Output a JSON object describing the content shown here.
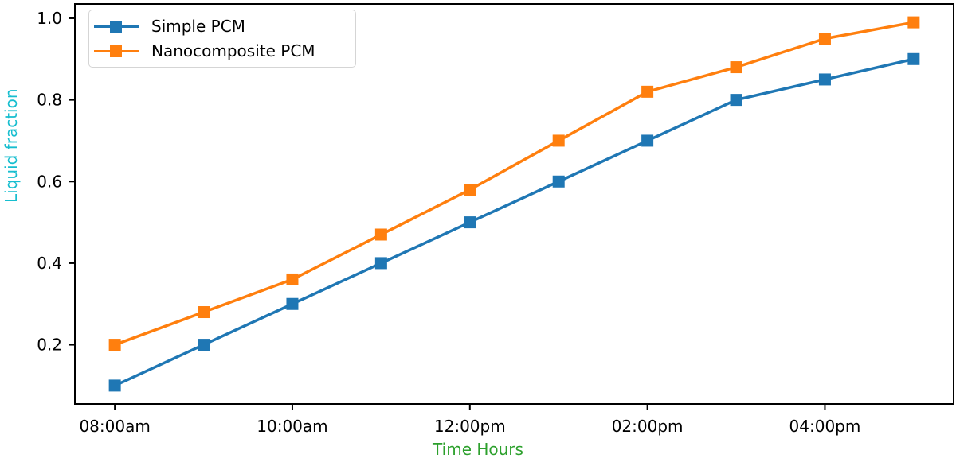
{
  "chart_data": {
    "type": "line",
    "x_hours": [
      8,
      9,
      10,
      11,
      12,
      13,
      14,
      15,
      16,
      17
    ],
    "series": [
      {
        "name": "Simple PCM",
        "color": "#1f77b4",
        "marker": "square",
        "values": [
          0.1,
          0.2,
          0.3,
          0.4,
          0.5,
          0.6,
          0.7,
          0.8,
          0.85,
          0.9
        ]
      },
      {
        "name": "Nanocomposite PCM",
        "color": "#ff7f0e",
        "marker": "square",
        "values": [
          0.2,
          0.28,
          0.36,
          0.47,
          0.58,
          0.7,
          0.82,
          0.88,
          0.95,
          0.99
        ]
      }
    ],
    "title": "",
    "xlabel": "Time Hours",
    "xlabel_color": "#2ca02c",
    "ylabel": "Liquid fraction",
    "ylabel_color": "#17becf",
    "xticks": [
      {
        "hour": 8,
        "label": "08:00am"
      },
      {
        "hour": 10,
        "label": "10:00am"
      },
      {
        "hour": 12,
        "label": "12:00pm"
      },
      {
        "hour": 14,
        "label": "02:00pm"
      },
      {
        "hour": 16,
        "label": "04:00pm"
      }
    ],
    "yticks": [
      {
        "value": 0.2,
        "label": "0.2"
      },
      {
        "value": 0.4,
        "label": "0.4"
      },
      {
        "value": 0.6,
        "label": "0.6"
      },
      {
        "value": 0.8,
        "label": "0.8"
      },
      {
        "value": 1.0,
        "label": "1.0"
      }
    ],
    "xlim": [
      7.55,
      17.45
    ],
    "ylim": [
      0.055,
      1.035
    ],
    "grid": false,
    "legend_position": "upper left",
    "spine_color": "#000000"
  }
}
